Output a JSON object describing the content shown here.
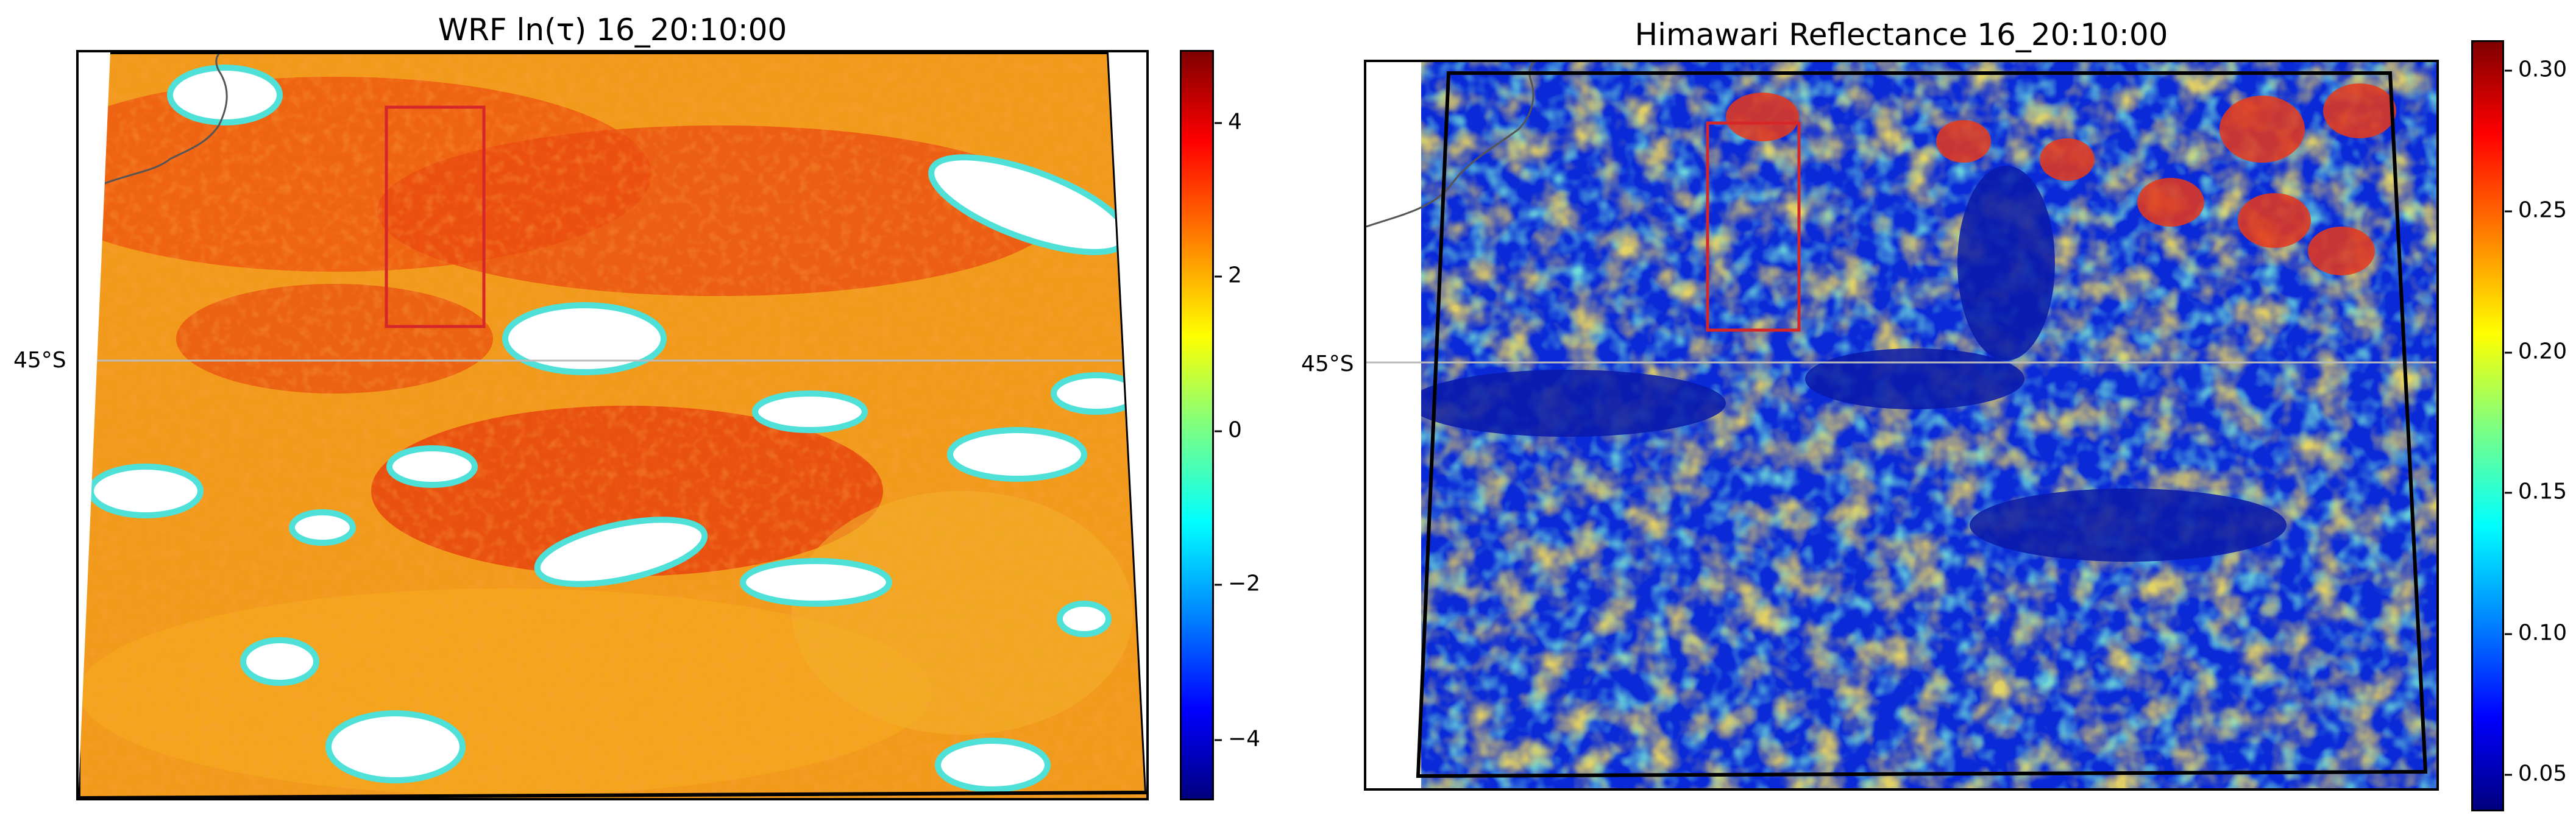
{
  "panels": [
    {
      "title": "WRF ln(τ) 16_20:10:00",
      "lat_label": "45°S",
      "colorbar": {
        "min": -5,
        "max": 5,
        "ticks": [
          "4",
          "2",
          "0",
          "−2",
          "−4"
        ],
        "tick_values": [
          4,
          2,
          0,
          -2,
          -4
        ],
        "colormap": "jet"
      }
    },
    {
      "title": "Himawari Reflectance 16_20:10:00",
      "lat_label": "45°S",
      "colorbar": {
        "min": 0.04,
        "max": 0.31,
        "ticks": [
          "0.30",
          "0.25",
          "0.20",
          "0.15",
          "0.10",
          "0.05"
        ],
        "tick_values": [
          0.3,
          0.25,
          0.2,
          0.15,
          0.1,
          0.05
        ],
        "colormap": "jet"
      }
    }
  ],
  "colors": {
    "domain_outline": "#000000",
    "region_box": "#d62728",
    "coastline": "#555555",
    "gridline": "#bbbbbb"
  }
}
